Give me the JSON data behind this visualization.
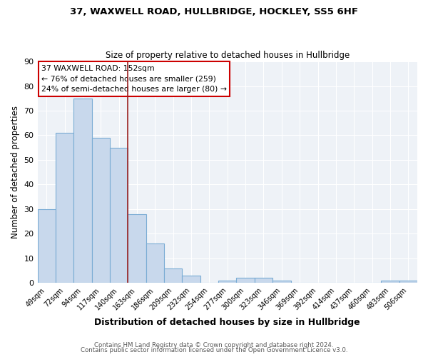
{
  "title1": "37, WAXWELL ROAD, HULLBRIDGE, HOCKLEY, SS5 6HF",
  "title2": "Size of property relative to detached houses in Hullbridge",
  "xlabel": "Distribution of detached houses by size in Hullbridge",
  "ylabel": "Number of detached properties",
  "bin_labels": [
    "49sqm",
    "72sqm",
    "94sqm",
    "117sqm",
    "140sqm",
    "163sqm",
    "186sqm",
    "209sqm",
    "232sqm",
    "254sqm",
    "277sqm",
    "300sqm",
    "323sqm",
    "346sqm",
    "369sqm",
    "392sqm",
    "414sqm",
    "437sqm",
    "460sqm",
    "483sqm",
    "506sqm"
  ],
  "bar_values": [
    30,
    61,
    75,
    59,
    55,
    28,
    16,
    6,
    3,
    0,
    1,
    2,
    2,
    1,
    0,
    0,
    0,
    0,
    0,
    1,
    1
  ],
  "bar_color": "#c8d8ec",
  "bar_edge_color": "#7aacd4",
  "vline_color": "#9b2020",
  "ylim": [
    0,
    90
  ],
  "yticks": [
    0,
    10,
    20,
    30,
    40,
    50,
    60,
    70,
    80,
    90
  ],
  "annotation_title": "37 WAXWELL ROAD: 152sqm",
  "annotation_line1": "← 76% of detached houses are smaller (259)",
  "annotation_line2": "24% of semi-detached houses are larger (80) →",
  "box_color": "#ffffff",
  "box_edge_color": "#cc0000",
  "footer1": "Contains HM Land Registry data © Crown copyright and database right 2024.",
  "footer2": "Contains public sector information licensed under the Open Government Licence v3.0.",
  "bg_color": "#ffffff",
  "plot_bg_color": "#eef2f7",
  "grid_color": "#ffffff"
}
